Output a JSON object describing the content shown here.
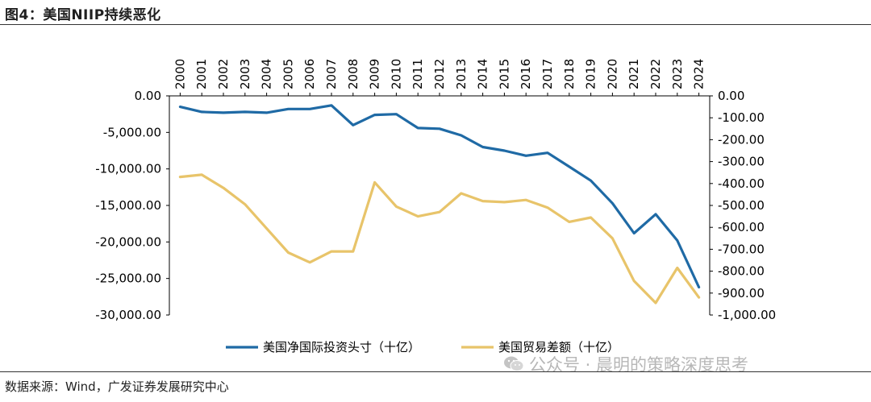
{
  "figure": {
    "title": "图4：美国NIIP持续恶化",
    "source": "数据来源：Wind，广发证券发展研究中心",
    "watermark": "公众号 · 晨明的策略深度思考",
    "watermark_icon": "wechat-icon"
  },
  "chart_data": {
    "type": "line",
    "x": [
      "2000",
      "2001",
      "2002",
      "2003",
      "2004",
      "2005",
      "2006",
      "2007",
      "2008",
      "2009",
      "2010",
      "2011",
      "2012",
      "2013",
      "2014",
      "2015",
      "2016",
      "2017",
      "2018",
      "2019",
      "2020",
      "2021",
      "2022",
      "2023",
      "2024"
    ],
    "x_axis_position": "top",
    "x_tick_rotation": "vertical",
    "left_axis": {
      "ylim": [
        -30000,
        0
      ],
      "ticks": [
        "0.00",
        "-5,000.00",
        "-10,000.00",
        "-15,000.00",
        "-20,000.00",
        "-25,000.00",
        "-30,000.00"
      ]
    },
    "right_axis": {
      "ylim": [
        -1000,
        0
      ],
      "ticks": [
        "0.00",
        "-100.00",
        "-200.00",
        "-300.00",
        "-400.00",
        "-500.00",
        "-600.00",
        "-700.00",
        "-800.00",
        "-900.00",
        "-1,000.00"
      ]
    },
    "series": [
      {
        "name": "美国净国际投资头寸（十亿）",
        "axis": "left",
        "color": "#1f6aa5",
        "values": [
          -1500,
          -2200,
          -2300,
          -2200,
          -2300,
          -1800,
          -1800,
          -1300,
          -4000,
          -2600,
          -2500,
          -4400,
          -4500,
          -5400,
          -7000,
          -7500,
          -8200,
          -7800,
          -9700,
          -11600,
          -14700,
          -18800,
          -16200,
          -19800,
          -26200
        ]
      },
      {
        "name": "美国贸易差额（十亿）",
        "axis": "right",
        "color": "#e8c46a",
        "values": [
          -370,
          -360,
          -420,
          -495,
          -605,
          -715,
          -760,
          -710,
          -710,
          -395,
          -505,
          -550,
          -530,
          -445,
          -480,
          -485,
          -475,
          -510,
          -575,
          -555,
          -650,
          -845,
          -945,
          -785,
          -920
        ]
      }
    ],
    "legend_position": "bottom-center",
    "grid": false
  }
}
